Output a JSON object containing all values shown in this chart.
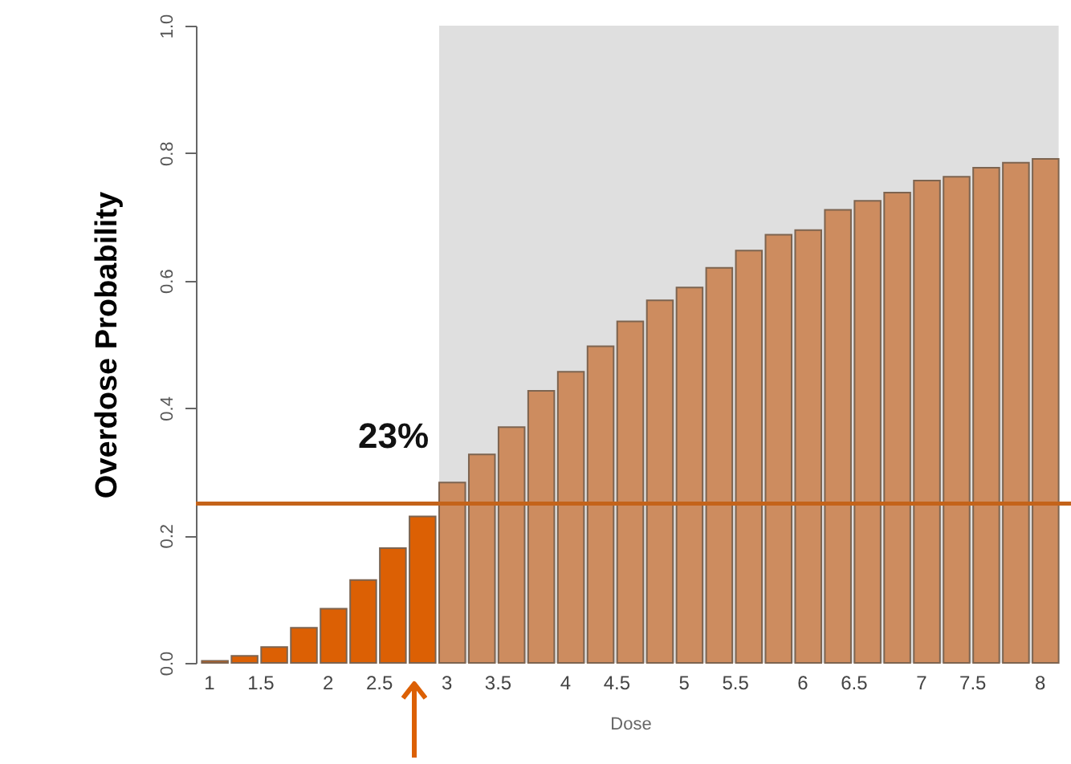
{
  "chart_data": {
    "type": "bar",
    "xlabel": "Dose",
    "ylabel": "Overdose Probability",
    "categories": [
      "1",
      null,
      "1.5",
      null,
      "2",
      null,
      "2.5",
      null,
      "3",
      null,
      "3.5",
      null,
      "4",
      null,
      "4.5",
      null,
      "5",
      null,
      "5.5",
      null,
      "6",
      null,
      "6.5",
      null,
      "7",
      null,
      "7.5",
      null,
      "8"
    ],
    "values": [
      0.003,
      0.011,
      0.025,
      0.055,
      0.085,
      0.13,
      0.18,
      0.23,
      0.283,
      0.327,
      0.37,
      0.427,
      0.457,
      0.497,
      0.536,
      0.569,
      0.589,
      0.62,
      0.647,
      0.672,
      0.679,
      0.711,
      0.725,
      0.738,
      0.757,
      0.763,
      0.777,
      0.785,
      0.791
    ],
    "colors": [
      "#dc6004",
      "#dc6004",
      "#dc6004",
      "#dc6004",
      "#dc6004",
      "#dc6004",
      "#dc6004",
      "#dc6004",
      "#cd8c5f",
      "#cd8c5f",
      "#cd8c5f",
      "#cd8c5f",
      "#cd8c5f",
      "#cd8c5f",
      "#cd8c5f",
      "#cd8c5f",
      "#cd8c5f",
      "#cd8c5f",
      "#cd8c5f",
      "#cd8c5f",
      "#cd8c5f",
      "#cd8c5f",
      "#cd8c5f",
      "#cd8c5f",
      "#cd8c5f",
      "#cd8c5f",
      "#cd8c5f",
      "#cd8c5f",
      "#cd8c5f"
    ],
    "ylim": [
      0,
      1
    ],
    "yticks": [
      {
        "value": 0,
        "label": "0.0"
      },
      {
        "value": 0.2,
        "label": "0.2"
      },
      {
        "value": 0.4,
        "label": "0.4"
      },
      {
        "value": 0.6,
        "label": "0.6"
      },
      {
        "value": 0.8,
        "label": "0.8"
      },
      {
        "value": 1,
        "label": "1.0"
      }
    ],
    "ref_lines": [
      {
        "axis": "y",
        "value": 0.25,
        "color": "#c4631a"
      }
    ],
    "bands": [
      {
        "axis": "x",
        "from": "3",
        "to": "8",
        "color": "#dfdfdf"
      }
    ],
    "annotations": [
      "23%"
    ],
    "grid": false
  }
}
